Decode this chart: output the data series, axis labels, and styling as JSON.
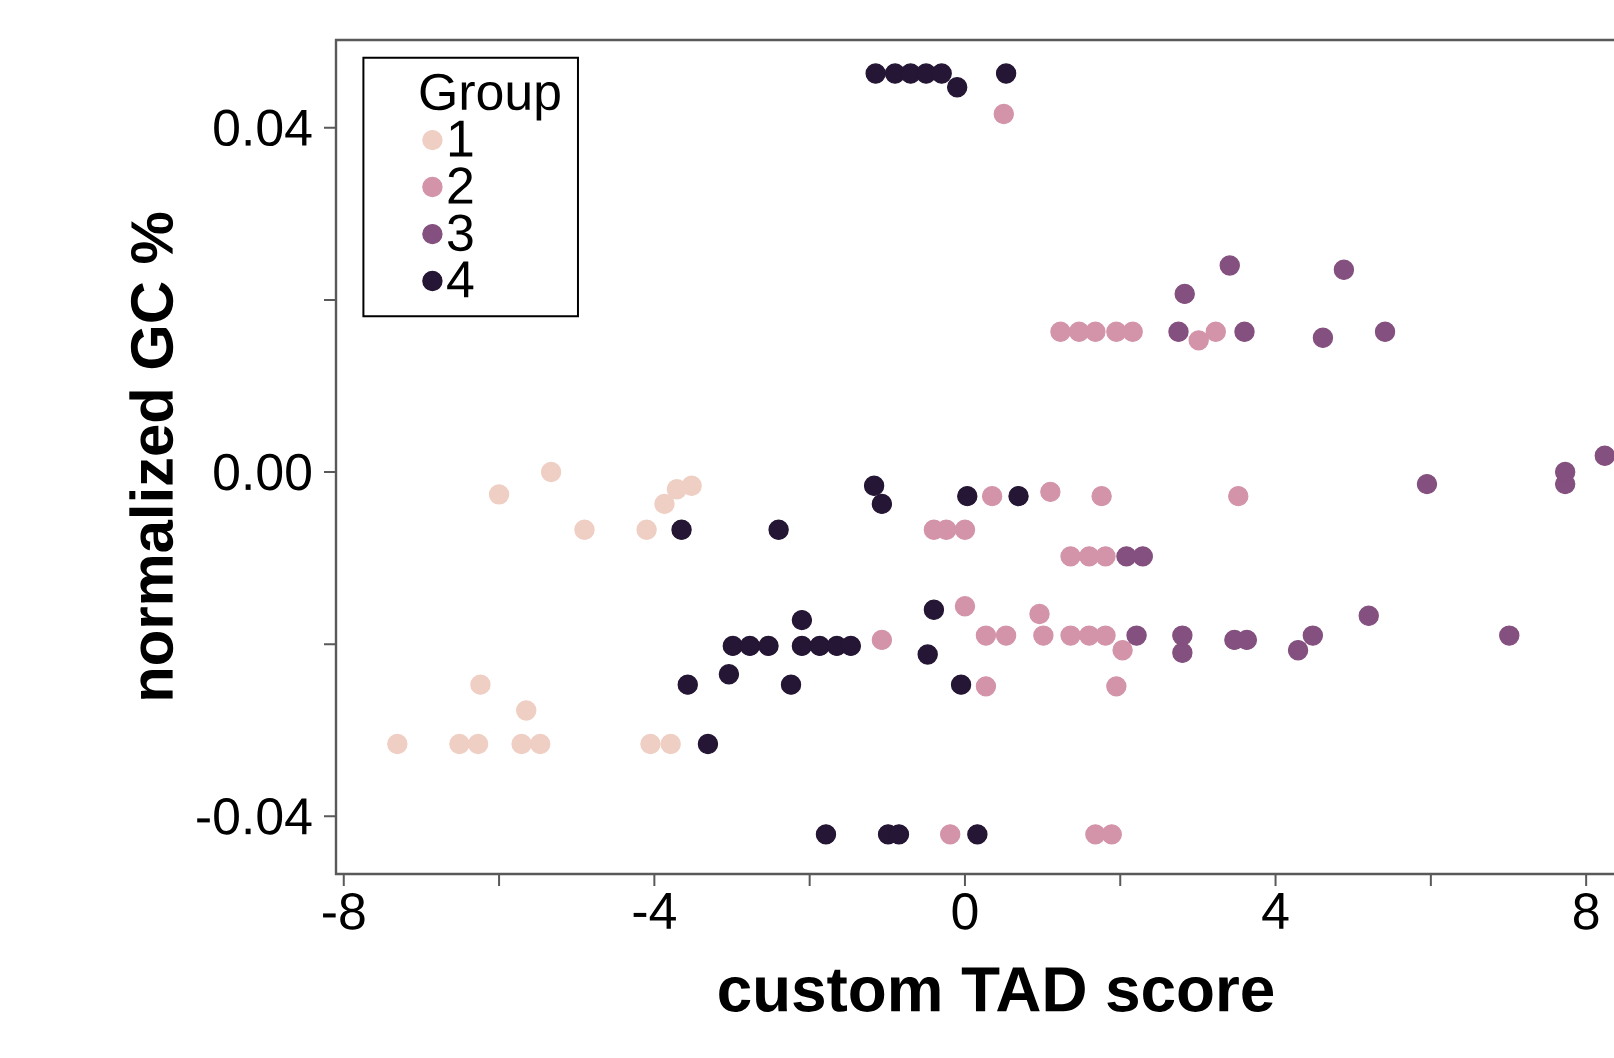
{
  "chart_data": {
    "type": "scatter",
    "xlabel": "custom TAD score",
    "ylabel": "normalized GC %",
    "legend_title": "Group",
    "legend": "top left",
    "grid": false,
    "xlim": [
      -8.1,
      8.9
    ],
    "ylim": [
      -0.0467,
      0.0502
    ],
    "xticks": [
      -8,
      {
        "value": -6,
        "label": null
      },
      -4,
      {
        "value": -2,
        "label": null
      },
      0,
      {
        "value": 2,
        "label": null
      },
      4,
      {
        "value": 6,
        "label": null
      },
      8
    ],
    "yticks": [
      {
        "value": -0.04,
        "label": "-0.04"
      },
      {
        "value": -0.02,
        "label": null
      },
      {
        "value": 0,
        "label": "0.00"
      },
      {
        "value": 0.02,
        "label": null
      },
      {
        "value": 0.04,
        "label": "0.04"
      }
    ],
    "series": [
      {
        "name": "1",
        "color": "#efcfc4",
        "x": [
          -6.0,
          -5.33,
          -3.71,
          -3.52,
          -3.87,
          -4.9,
          -4.1,
          -6.24,
          -5.65,
          -7.31,
          -6.51,
          -6.27,
          -5.71,
          -5.47,
          -4.05,
          -3.79
        ],
        "values": [
          -0.0026,
          0.0,
          -0.002,
          -0.0016,
          -0.0037,
          -0.0067,
          -0.0067,
          -0.0247,
          -0.0277,
          -0.0316,
          -0.0316,
          -0.0316,
          -0.0316,
          -0.0316,
          -0.0316,
          -0.0316
        ]
      },
      {
        "name": "2",
        "color": "#d394aa",
        "x": [
          0.5,
          1.23,
          1.47,
          1.68,
          1.95,
          2.16,
          3.01,
          3.23,
          1.76,
          3.52,
          0.35,
          1.1,
          -0.4,
          -0.24,
          0.0,
          1.36,
          1.6,
          1.81,
          -1.07,
          0.27,
          0.0,
          0.96,
          0.53,
          1.01,
          1.36,
          1.6,
          1.81,
          2.03,
          0.27,
          1.95,
          -0.19,
          1.68,
          1.89
        ],
        "values": [
          0.0416,
          0.0163,
          0.0163,
          0.0163,
          0.0163,
          0.0163,
          0.0153,
          0.0163,
          -0.0028,
          -0.0028,
          -0.0028,
          -0.0023,
          -0.0067,
          -0.0067,
          -0.0067,
          -0.0098,
          -0.0098,
          -0.0098,
          -0.0195,
          -0.019,
          -0.0156,
          -0.0165,
          -0.019,
          -0.019,
          -0.019,
          -0.019,
          -0.019,
          -0.0207,
          -0.0249,
          -0.0249,
          -0.0421,
          -0.0421,
          -0.0421
        ]
      },
      {
        "name": "3",
        "color": "#84507f",
        "x": [
          3.41,
          4.88,
          2.83,
          2.75,
          3.6,
          4.61,
          5.41,
          8.24,
          5.95,
          7.73,
          7.73,
          2.08,
          2.29,
          5.2,
          2.21,
          2.8,
          2.8,
          3.47,
          3.63,
          4.29,
          4.48,
          7.01
        ],
        "values": [
          0.024,
          0.0235,
          0.0207,
          0.0163,
          0.0163,
          0.0156,
          0.0163,
          0.0019,
          -0.0014,
          -0.0014,
          0.0,
          -0.0098,
          -0.0098,
          -0.0167,
          -0.019,
          -0.019,
          -0.021,
          -0.0195,
          -0.0195,
          -0.0207,
          -0.019,
          -0.019
        ]
      },
      {
        "name": "4",
        "color": "#241634",
        "x": [
          -1.15,
          -0.9,
          -0.7,
          -0.5,
          -0.3,
          -0.1,
          0.53,
          0.03,
          0.69,
          -1.17,
          -1.07,
          -3.65,
          -2.4,
          -2.1,
          -0.4,
          -2.99,
          -2.77,
          -2.53,
          -2.1,
          -1.87,
          -1.65,
          -1.47,
          -0.48,
          -3.57,
          -3.04,
          -2.24,
          -0.05,
          -3.31,
          -1.79,
          -0.99,
          -0.85,
          0.16
        ],
        "values": [
          0.0463,
          0.0463,
          0.0463,
          0.0463,
          0.0463,
          0.0447,
          0.0463,
          -0.0028,
          -0.0028,
          -0.0016,
          -0.0037,
          -0.0067,
          -0.0067,
          -0.0172,
          -0.016,
          -0.0202,
          -0.0202,
          -0.0202,
          -0.0202,
          -0.0202,
          -0.0202,
          -0.0202,
          -0.0212,
          -0.0247,
          -0.0235,
          -0.0247,
          -0.0247,
          -0.0316,
          -0.0421,
          -0.0421,
          -0.0421,
          -0.0421
        ]
      }
    ]
  }
}
